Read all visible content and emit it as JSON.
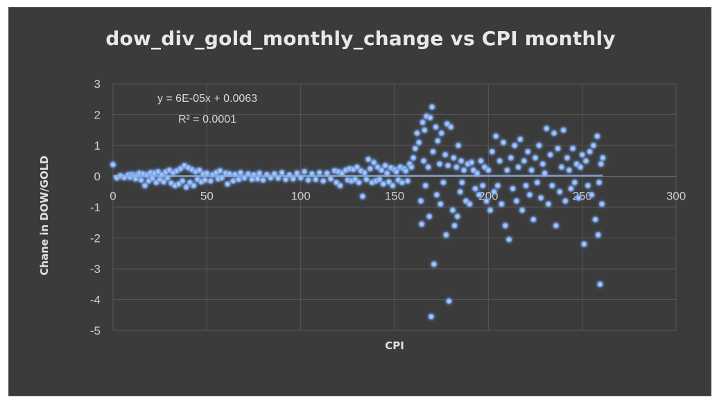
{
  "chart_data": {
    "type": "scatter",
    "title": "dow_div_gold_monthly_change vs CPI monthly",
    "xlabel": "CPI",
    "ylabel": "Chane in DOW/GOLD",
    "xlim": [
      0,
      300
    ],
    "ylim": [
      -5,
      3
    ],
    "x_ticks": [
      "0",
      "50",
      "100",
      "150",
      "200",
      "250",
      "300"
    ],
    "y_ticks": [
      "3",
      "2",
      "1",
      "0",
      "-1",
      "-2",
      "-3",
      "-4",
      "-5"
    ],
    "grid": true,
    "trendline": {
      "equation": "y = 6E-05x + 0.0063",
      "r_squared": "R² = 0.0001",
      "slope": 6e-05,
      "intercept": 0.0063
    },
    "marker_color": "#6f9fe8",
    "series": [
      {
        "points": [
          [
            0,
            0.38
          ],
          [
            2,
            -0.05
          ],
          [
            4,
            0.02
          ],
          [
            6,
            -0.04
          ],
          [
            8,
            0.05
          ],
          [
            9,
            -0.03
          ],
          [
            10,
            0.06
          ],
          [
            11,
            0.02
          ],
          [
            12,
            -0.08
          ],
          [
            13,
            0.05
          ],
          [
            14,
            0.1
          ],
          [
            15,
            -0.12
          ],
          [
            16,
            0.08
          ],
          [
            17,
            -0.3
          ],
          [
            18,
            0.04
          ],
          [
            19,
            -0.15
          ],
          [
            20,
            0.12
          ],
          [
            21,
            -0.06
          ],
          [
            22,
            0.1
          ],
          [
            23,
            -0.2
          ],
          [
            24,
            0.15
          ],
          [
            25,
            -0.1
          ],
          [
            26,
            0.05
          ],
          [
            27,
            -0.18
          ],
          [
            28,
            0.14
          ],
          [
            29,
            -0.05
          ],
          [
            30,
            0.2
          ],
          [
            31,
            -0.22
          ],
          [
            32,
            0.12
          ],
          [
            33,
            -0.3
          ],
          [
            34,
            0.18
          ],
          [
            35,
            -0.25
          ],
          [
            36,
            0.25
          ],
          [
            37,
            -0.15
          ],
          [
            38,
            0.35
          ],
          [
            39,
            -0.35
          ],
          [
            40,
            0.28
          ],
          [
            41,
            -0.2
          ],
          [
            42,
            0.22
          ],
          [
            43,
            -0.3
          ],
          [
            44,
            0.15
          ],
          [
            45,
            -0.1
          ],
          [
            46,
            0.2
          ],
          [
            47,
            -0.18
          ],
          [
            48,
            0.08
          ],
          [
            49,
            -0.12
          ],
          [
            50,
            0.1
          ],
          [
            52,
            -0.15
          ],
          [
            53,
            0.05
          ],
          [
            55,
            0.12
          ],
          [
            56,
            -0.08
          ],
          [
            57,
            0.18
          ],
          [
            58,
            -0.05
          ],
          [
            60,
            0.1
          ],
          [
            61,
            -0.25
          ],
          [
            62,
            0.08
          ],
          [
            64,
            -0.15
          ],
          [
            65,
            0.06
          ],
          [
            67,
            -0.1
          ],
          [
            68,
            0.12
          ],
          [
            70,
            -0.05
          ],
          [
            72,
            0.08
          ],
          [
            74,
            -0.1
          ],
          [
            75,
            0.05
          ],
          [
            77,
            -0.08
          ],
          [
            78,
            0.1
          ],
          [
            80,
            -0.12
          ],
          [
            82,
            0.06
          ],
          [
            84,
            -0.05
          ],
          [
            86,
            0.08
          ],
          [
            88,
            -0.06
          ],
          [
            90,
            0.12
          ],
          [
            92,
            -0.1
          ],
          [
            94,
            0.05
          ],
          [
            96,
            -0.08
          ],
          [
            98,
            0.1
          ],
          [
            100,
            -0.05
          ],
          [
            102,
            0.15
          ],
          [
            104,
            -0.12
          ],
          [
            106,
            0.08
          ],
          [
            108,
            -0.1
          ],
          [
            110,
            0.12
          ],
          [
            112,
            -0.15
          ],
          [
            114,
            0.1
          ],
          [
            116,
            -0.08
          ],
          [
            118,
            0.18
          ],
          [
            119,
            -0.2
          ],
          [
            120,
            0.15
          ],
          [
            121,
            -0.3
          ],
          [
            122,
            0.1
          ],
          [
            124,
            0.2
          ],
          [
            125,
            -0.12
          ],
          [
            126,
            0.25
          ],
          [
            127,
            -0.15
          ],
          [
            128,
            0.22
          ],
          [
            129,
            -0.1
          ],
          [
            130,
            0.3
          ],
          [
            131,
            -0.2
          ],
          [
            132,
            0.18
          ],
          [
            133,
            -0.65
          ],
          [
            134,
            0.12
          ],
          [
            135,
            -0.1
          ],
          [
            136,
            0.55
          ],
          [
            137,
            0.25
          ],
          [
            138,
            -0.2
          ],
          [
            139,
            0.45
          ],
          [
            140,
            -0.15
          ],
          [
            141,
            0.3
          ],
          [
            142,
            -0.1
          ],
          [
            143,
            0.2
          ],
          [
            144,
            -0.25
          ],
          [
            145,
            0.35
          ],
          [
            146,
            0.1
          ],
          [
            147,
            -0.18
          ],
          [
            148,
            0.28
          ],
          [
            149,
            -0.3
          ],
          [
            150,
            0.22
          ],
          [
            151,
            0.15
          ],
          [
            152,
            -0.12
          ],
          [
            153,
            0.3
          ],
          [
            154,
            -0.2
          ],
          [
            155,
            0.25
          ],
          [
            156,
            0.18
          ],
          [
            157,
            -0.15
          ],
          [
            158,
            0.4
          ],
          [
            159,
            0.3
          ],
          [
            160,
            0.6
          ],
          [
            161,
            0.9
          ],
          [
            162,
            1.4
          ],
          [
            163,
            1.1
          ],
          [
            164,
            -0.8
          ],
          [
            164.5,
            -1.55
          ],
          [
            165,
            1.75
          ],
          [
            165.5,
            0.5
          ],
          [
            166,
            1.5
          ],
          [
            166.5,
            -0.3
          ],
          [
            167,
            1.95
          ],
          [
            168,
            0.3
          ],
          [
            168.5,
            -1.3
          ],
          [
            169,
            1.9
          ],
          [
            169.5,
            -4.55
          ],
          [
            170,
            2.25
          ],
          [
            170.5,
            0.8
          ],
          [
            171,
            -2.85
          ],
          [
            172,
            1.6
          ],
          [
            172.5,
            -0.6
          ],
          [
            173,
            1.15
          ],
          [
            174,
            0.4
          ],
          [
            174.5,
            -0.9
          ],
          [
            175,
            1.4
          ],
          [
            176,
            -0.2
          ],
          [
            177,
            0.7
          ],
          [
            177.5,
            -1.9
          ],
          [
            178,
            1.7
          ],
          [
            178.5,
            0.35
          ],
          [
            179,
            -4.05
          ],
          [
            180,
            1.6
          ],
          [
            181,
            -1.1
          ],
          [
            181.5,
            0.6
          ],
          [
            182,
            -1.6
          ],
          [
            183,
            0.3
          ],
          [
            183.5,
            -1.3
          ],
          [
            184,
            1.0
          ],
          [
            185,
            -0.5
          ],
          [
            185.5,
            0.5
          ],
          [
            186,
            -0.2
          ],
          [
            187,
            0.2
          ],
          [
            188,
            -0.8
          ],
          [
            189,
            0.4
          ],
          [
            190,
            -0.9
          ],
          [
            191,
            0.45
          ],
          [
            192,
            0.2
          ],
          [
            193,
            -0.4
          ],
          [
            194,
            0.1
          ],
          [
            195,
            -0.6
          ],
          [
            196,
            0.5
          ],
          [
            197,
            -0.3
          ],
          [
            198,
            0.3
          ],
          [
            199,
            -0.8
          ],
          [
            200,
            0.2
          ],
          [
            201,
            -1.1
          ],
          [
            202,
            0.8
          ],
          [
            203,
            -0.5
          ],
          [
            204,
            1.3
          ],
          [
            205,
            -0.3
          ],
          [
            206,
            0.5
          ],
          [
            207,
            -0.9
          ],
          [
            208,
            1.1
          ],
          [
            209,
            -1.6
          ],
          [
            210,
            0.2
          ],
          [
            211,
            -2.05
          ],
          [
            212,
            0.6
          ],
          [
            213,
            -0.4
          ],
          [
            214,
            1.0
          ],
          [
            215,
            -0.8
          ],
          [
            216,
            0.3
          ],
          [
            217,
            1.2
          ],
          [
            218,
            -1.1
          ],
          [
            219,
            0.5
          ],
          [
            220,
            -0.3
          ],
          [
            221,
            0.8
          ],
          [
            222,
            -0.6
          ],
          [
            223,
            0.2
          ],
          [
            224,
            -1.4
          ],
          [
            225,
            0.6
          ],
          [
            226,
            -0.2
          ],
          [
            227,
            1.0
          ],
          [
            228,
            -0.7
          ],
          [
            229,
            0.4
          ],
          [
            230,
            0.1
          ],
          [
            231,
            1.55
          ],
          [
            232,
            -0.9
          ],
          [
            233,
            0.7
          ],
          [
            234,
            -0.3
          ],
          [
            235,
            1.4
          ],
          [
            236,
            -1.6
          ],
          [
            237,
            0.9
          ],
          [
            238,
            -0.5
          ],
          [
            239,
            0.3
          ],
          [
            240,
            1.5
          ],
          [
            241,
            -0.8
          ],
          [
            242,
            0.6
          ],
          [
            243,
            0.2
          ],
          [
            244,
            -0.4
          ],
          [
            245,
            0.9
          ],
          [
            246,
            -0.2
          ],
          [
            247,
            0.4
          ],
          [
            248,
            -0.7
          ],
          [
            249,
            0.3
          ],
          [
            250,
            0.7
          ],
          [
            251,
            -2.2
          ],
          [
            252,
            0.5
          ],
          [
            253,
            -0.3
          ],
          [
            254,
            0.8
          ],
          [
            255,
            -0.6
          ],
          [
            256,
            1.0
          ],
          [
            257,
            -1.4
          ],
          [
            258,
            1.3
          ],
          [
            258.5,
            -1.9
          ],
          [
            259,
            -0.2
          ],
          [
            259.5,
            -3.5
          ],
          [
            260,
            0.4
          ],
          [
            260.5,
            -0.9
          ],
          [
            261,
            0.6
          ]
        ]
      }
    ]
  }
}
